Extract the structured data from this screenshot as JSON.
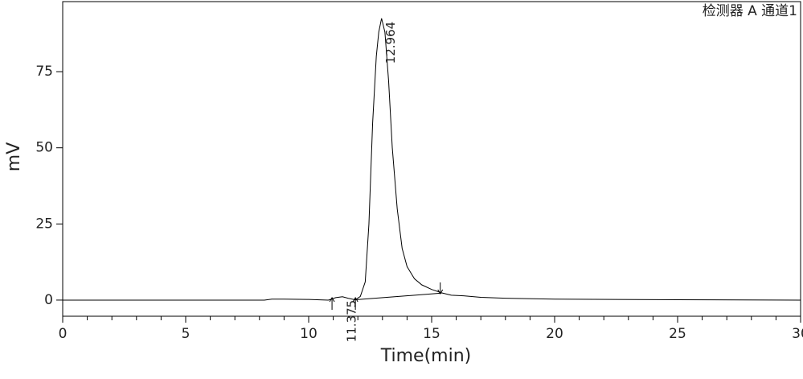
{
  "chart_data": {
    "type": "line",
    "annotation": "检测器 A 通道1",
    "xlabel": "Time(min)",
    "ylabel": "mV",
    "xlim": [
      0,
      30
    ],
    "xticks": [
      0,
      5,
      10,
      15,
      20,
      25,
      30
    ],
    "xminorticks": [
      1,
      2,
      3,
      4,
      6,
      7,
      8,
      9,
      11,
      12,
      13,
      14,
      16,
      17,
      18,
      19,
      21,
      22,
      23,
      24,
      26,
      27,
      28,
      29
    ],
    "ylim": [
      -5.3,
      98
    ],
    "yticks": [
      0,
      25,
      50,
      75
    ],
    "series": [
      {
        "color": "#000000",
        "x": [
          0,
          8.2,
          8.5,
          9,
          10,
          10.8,
          11.1,
          11.375,
          11.6,
          11.9,
          12.1,
          12.3,
          12.45,
          12.6,
          12.75,
          12.85,
          12.964,
          13.1,
          13.25,
          13.4,
          13.6,
          13.8,
          14.0,
          14.3,
          14.6,
          15.0,
          15.4,
          15.8,
          16.3,
          17,
          18,
          20,
          25,
          30
        ],
        "values": [
          0,
          0,
          0.3,
          0.3,
          0.2,
          0,
          0.8,
          1.1,
          0.6,
          0.1,
          1.2,
          6,
          25,
          58,
          80,
          88,
          92.5,
          88,
          72,
          50,
          30,
          17,
          11,
          7,
          5,
          3.5,
          2.4,
          1.6,
          1.4,
          0.9,
          0.6,
          0.3,
          0.1,
          0
        ]
      },
      {
        "color": "#000000",
        "x": [
          11.9,
          15.4
        ],
        "values": [
          0.1,
          2.3
        ]
      }
    ],
    "peak_labels": [
      {
        "x": 12.964,
        "y": 92.5
      },
      {
        "x": 11.375,
        "y": 1.1
      }
    ],
    "event_markers": [
      {
        "x": 10.95,
        "direction": "up"
      },
      {
        "x": 11.9,
        "direction": "up"
      },
      {
        "x": 15.35,
        "direction": "down"
      }
    ]
  }
}
